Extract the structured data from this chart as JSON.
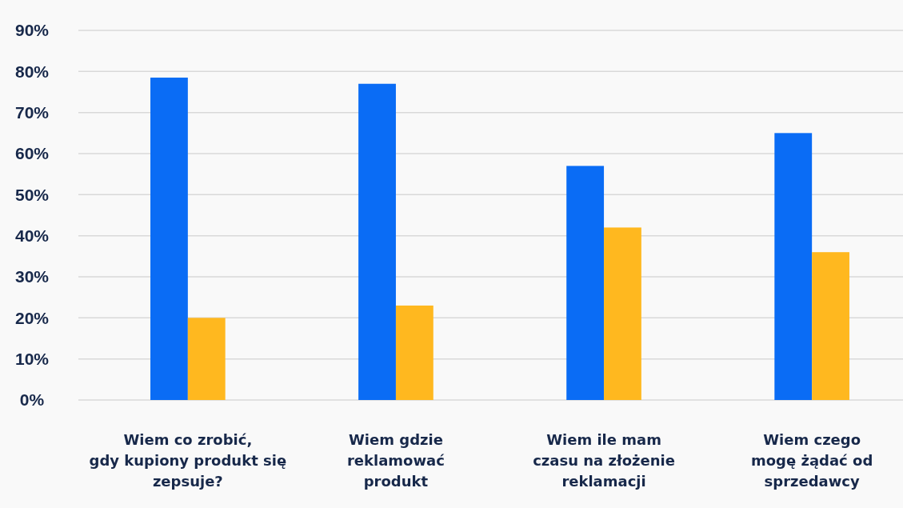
{
  "chart_data": {
    "type": "bar",
    "categories": [
      "Wiem co zrobić,\ngdy kupiony produkt się\nzepsuje?",
      "Wiem gdzie\nreklamować\nprodukt",
      "Wiem ile mam\nczasu na złożenie\nreklamacji",
      "Wiem czego\nmogę żądać od\nsprzedawcy"
    ],
    "series": [
      {
        "color": "#0a6cf5",
        "values": [
          78.5,
          77,
          57,
          65
        ]
      },
      {
        "color": "#ffb81f",
        "values": [
          20,
          23,
          42,
          36
        ]
      }
    ],
    "ylim": [
      0,
      90
    ],
    "yticks": [
      {
        "value": 0,
        "label": "0%"
      },
      {
        "value": 10,
        "label": "10%"
      },
      {
        "value": 20,
        "label": "20%"
      },
      {
        "value": 30,
        "label": "30%"
      },
      {
        "value": 40,
        "label": "40%"
      },
      {
        "value": 50,
        "label": "50%"
      },
      {
        "value": 60,
        "label": "60%"
      },
      {
        "value": 70,
        "label": "70%"
      },
      {
        "value": 80,
        "label": "80%"
      },
      {
        "value": 90,
        "label": "90%"
      }
    ],
    "grid": "y"
  }
}
